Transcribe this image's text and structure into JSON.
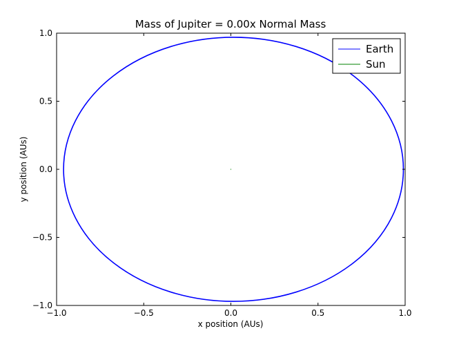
{
  "chart_data": {
    "type": "line",
    "title": "Mass of Jupiter = 0.00x Normal Mass",
    "xlabel": "x position (AUs)",
    "ylabel": "y position (AUs)",
    "xlim": [
      -1.0,
      1.0
    ],
    "ylim": [
      -1.0,
      1.0
    ],
    "xticks": [
      -1.0,
      -0.5,
      0.0,
      0.5,
      1.0
    ],
    "yticks": [
      -1.0,
      -0.5,
      0.0,
      0.5,
      1.0
    ],
    "xtick_labels": [
      "−1.0",
      "−0.5",
      "0.0",
      "0.5",
      "1.0"
    ],
    "ytick_labels": [
      "−1.0",
      "−0.5",
      "0.0",
      "0.5",
      "1.0"
    ],
    "grid": false,
    "legend": {
      "placement": "top-right",
      "entries": [
        "Earth",
        "Sun"
      ]
    },
    "series": [
      {
        "name": "Earth",
        "color": "#0000ff",
        "shape": "ellipse",
        "center": [
          0.015,
          0.0
        ],
        "x_extent": [
          -0.96,
          0.99
        ],
        "y_extent": [
          -0.97,
          0.97
        ]
      },
      {
        "name": "Sun",
        "color": "#008000",
        "shape": "point",
        "x": [
          0.0
        ],
        "y": [
          0.0
        ]
      }
    ]
  }
}
